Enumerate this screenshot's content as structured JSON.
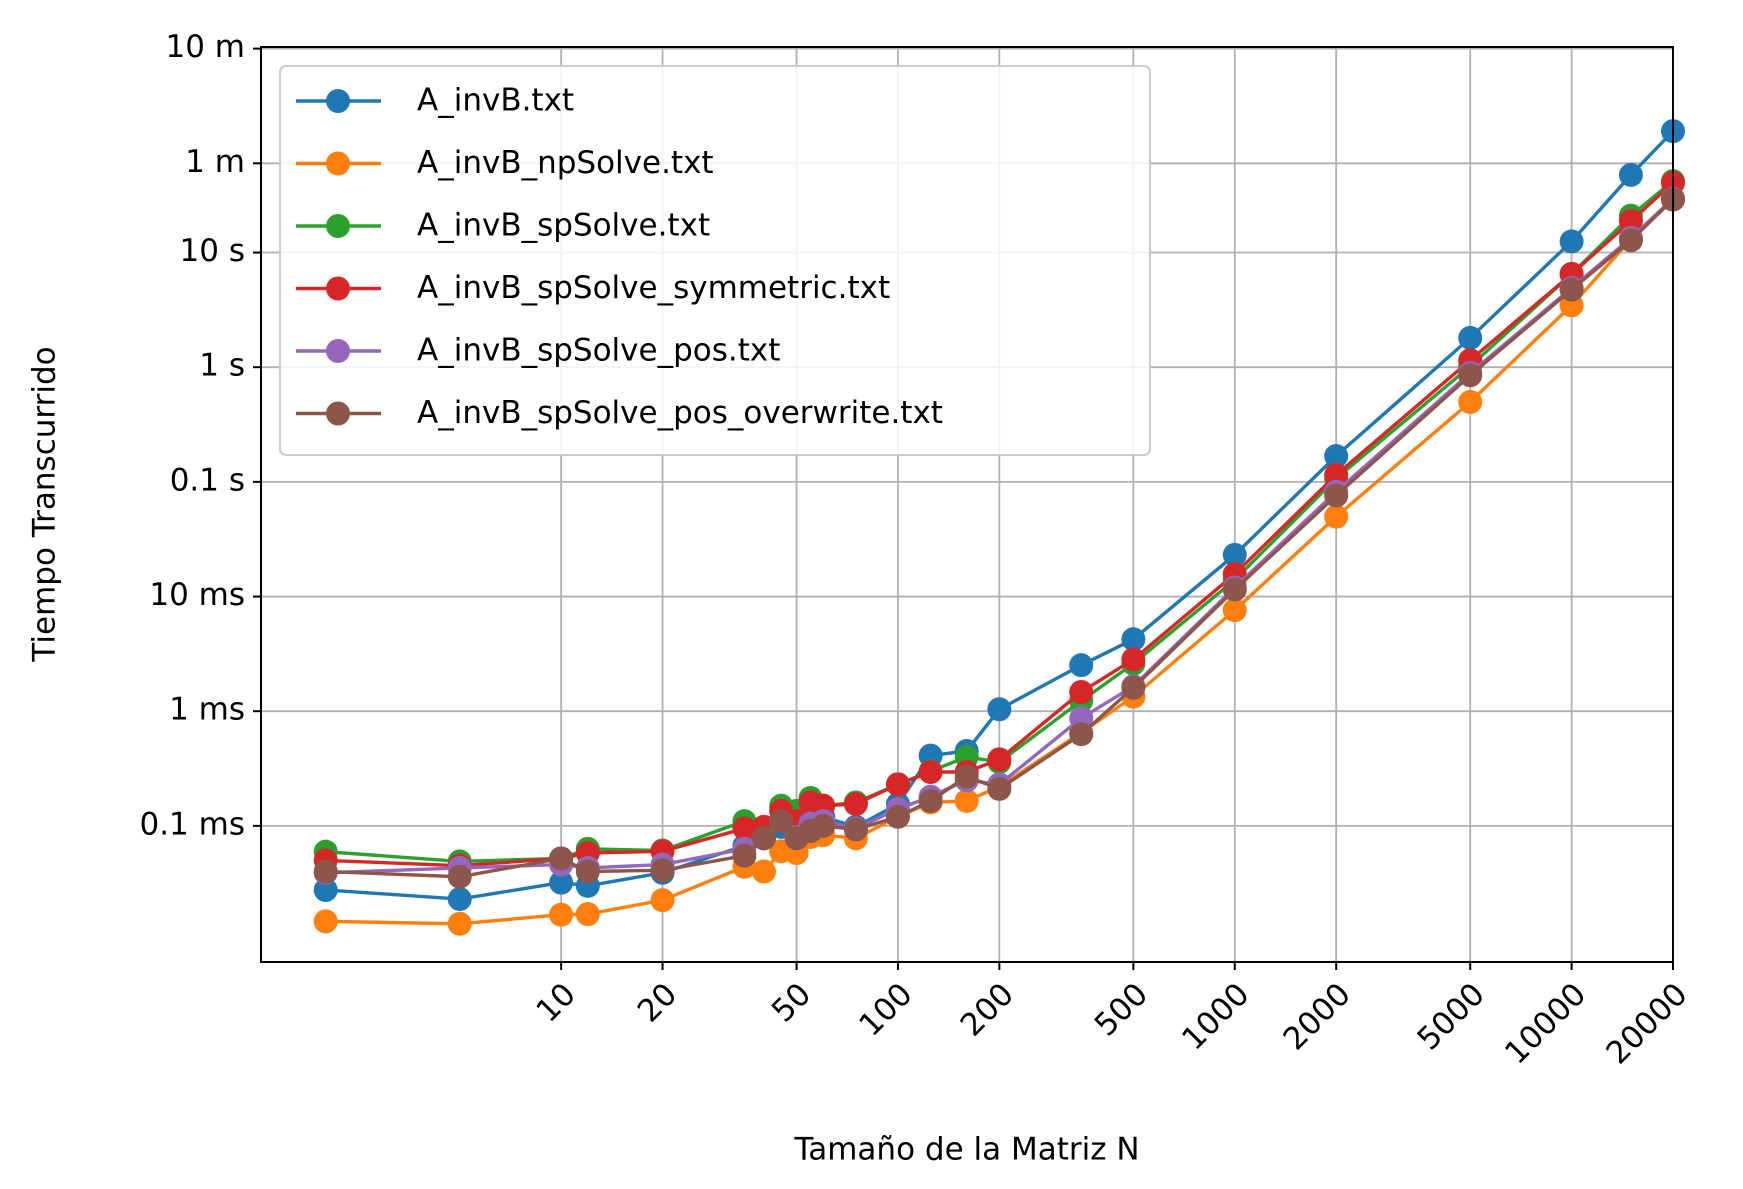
{
  "chart_data": {
    "type": "line",
    "x_label": "Tamaño de la Matriz N",
    "y_label": "Tiempo Transcurrido",
    "x": [
      2,
      5,
      10,
      12,
      20,
      35,
      40,
      45,
      50,
      55,
      60,
      75,
      100,
      125,
      160,
      200,
      350,
      500,
      1000,
      2000,
      5000,
      10000,
      15000,
      20000
    ],
    "series": [
      {
        "name": "A_invB.txt",
        "color": "#1f77b4",
        "values": [
          2.76e-05,
          2.3e-05,
          3.2e-05,
          3e-05,
          3.9e-05,
          6.7e-05,
          7.8e-05,
          9.8e-05,
          8.3e-05,
          0.00011,
          0.00012,
          9.8e-05,
          0.000155,
          0.00041,
          0.00045,
          0.00104,
          0.00252,
          0.00424,
          0.0231,
          0.168,
          1.8,
          12.5,
          47.5,
          114.5
        ]
      },
      {
        "name": "A_invB_npSolve.txt",
        "color": "#ff7f0e",
        "values": [
          1.47e-05,
          1.4e-05,
          1.68e-05,
          1.7e-05,
          2.25e-05,
          4.4e-05,
          4e-05,
          6e-05,
          5.8e-05,
          8e-05,
          8.3e-05,
          7.8e-05,
          0.00012,
          0.00016,
          0.000165,
          0.00022,
          0.00065,
          0.00134,
          0.0076,
          0.0497,
          0.497,
          3.46,
          13,
          29
        ]
      },
      {
        "name": "A_invB_spSolve.txt",
        "color": "#2ca02c",
        "values": [
          5.96e-05,
          4.9e-05,
          5.2e-05,
          6.3e-05,
          6.1e-05,
          0.00011,
          9.5e-05,
          0.00015,
          0.000135,
          0.000175,
          0.00015,
          0.00016,
          0.00023,
          0.0003,
          0.0004,
          0.00036,
          0.00123,
          0.0026,
          0.014,
          0.107,
          1.02,
          6.5,
          21,
          42
        ]
      },
      {
        "name": "A_invB_spSolve_symmetric.txt",
        "color": "#d62728",
        "values": [
          5e-05,
          4.5e-05,
          5.2e-05,
          5.8e-05,
          6e-05,
          9.5e-05,
          9.8e-05,
          0.000135,
          0.00011,
          0.00016,
          0.00015,
          0.000155,
          0.00023,
          0.000295,
          0.000295,
          0.00038,
          0.00147,
          0.00283,
          0.0157,
          0.115,
          1.15,
          6.5,
          18.8,
          40.5
        ]
      },
      {
        "name": "A_invB_spSolve_pos.txt",
        "color": "#9467bd",
        "values": [
          3.9e-05,
          4.3e-05,
          4.6e-05,
          4.3e-05,
          4.6e-05,
          6.3e-05,
          7.8e-05,
          0.00011,
          8e-05,
          0.000105,
          0.00011,
          9.5e-05,
          0.00014,
          0.00018,
          0.00025,
          0.00023,
          0.00087,
          0.00165,
          0.012,
          0.082,
          0.89,
          4.9,
          13.4,
          29.5
        ]
      },
      {
        "name": "A_invB_spSolve_pos_overwrite.txt",
        "color": "#8c564b",
        "values": [
          4e-05,
          3.6e-05,
          5.2e-05,
          4e-05,
          4.1e-05,
          5.5e-05,
          7.8e-05,
          0.00011,
          7.8e-05,
          9e-05,
          0.0001,
          9.3e-05,
          0.00012,
          0.000165,
          0.00027,
          0.00021,
          0.00063,
          0.0016,
          0.0115,
          0.076,
          0.85,
          4.75,
          12.8,
          29
        ]
      }
    ],
    "x_log": true,
    "y_log": true,
    "xlim": [
      1.285,
      20000
    ],
    "ylim": [
      6.5e-06,
      620
    ],
    "xticks": [
      10,
      20,
      50,
      100,
      200,
      500,
      1000,
      2000,
      5000,
      10000,
      20000
    ],
    "yticks": [
      {
        "value": 0.0001,
        "label": "0.1 ms"
      },
      {
        "value": 0.001,
        "label": "1 ms"
      },
      {
        "value": 0.01,
        "label": "10 ms"
      },
      {
        "value": 0.1,
        "label": "0.1 s"
      },
      {
        "value": 1,
        "label": "1 s"
      },
      {
        "value": 10,
        "label": "10 s"
      },
      {
        "value": 60,
        "label": "1 m"
      },
      {
        "value": 600,
        "label": "10 m"
      }
    ],
    "grid": true,
    "legend": "upper left"
  }
}
